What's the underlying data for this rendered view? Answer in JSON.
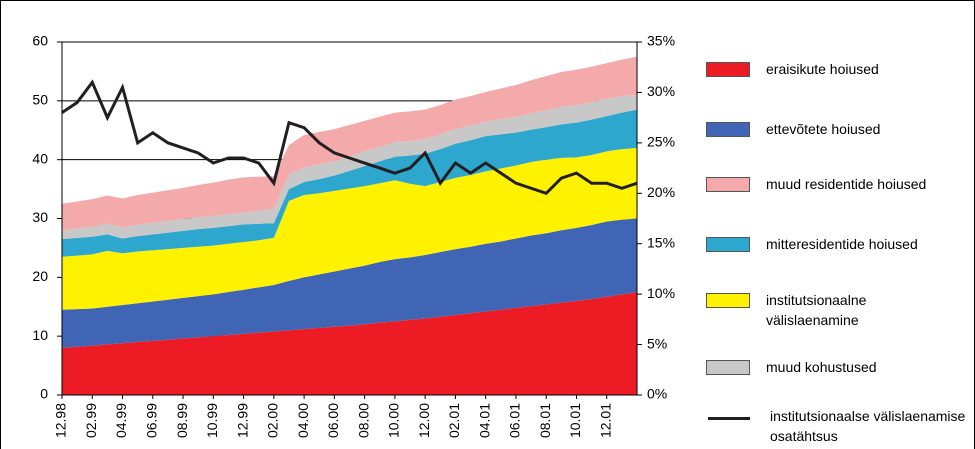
{
  "chart_data": {
    "type": "area",
    "categories": [
      "12.98",
      null,
      "02.99",
      null,
      "04.99",
      null,
      "06.99",
      null,
      "08.99",
      null,
      "10.99",
      null,
      "12.99",
      null,
      "02.00",
      null,
      "04.00",
      null,
      "06.00",
      null,
      "08.00",
      null,
      "10.00",
      null,
      "12.00",
      null,
      "02.01",
      null,
      "04.01",
      null,
      "06.01",
      null,
      "08.01",
      null,
      "10.01",
      null,
      "12.01",
      null,
      null
    ],
    "ylim": [
      0,
      60
    ],
    "yticks": [
      0,
      10,
      20,
      30,
      40,
      50,
      60
    ],
    "y2lim": [
      0,
      35
    ],
    "y2ticks": [
      {
        "value": 0,
        "label": "0%"
      },
      {
        "value": 5,
        "label": "5%"
      },
      {
        "value": 10,
        "label": "10%"
      },
      {
        "value": 15,
        "label": "15%"
      },
      {
        "value": 20,
        "label": "20%"
      },
      {
        "value": 25,
        "label": "25%"
      },
      {
        "value": 30,
        "label": "30%"
      },
      {
        "value": 35,
        "label": "35%"
      }
    ],
    "grid": true,
    "series": [
      {
        "name": "eraisikute hoiused",
        "color": "#ed1c24",
        "values": [
          8.0,
          8.2,
          8.4,
          8.6,
          8.8,
          9.0,
          9.2,
          9.4,
          9.6,
          9.8,
          10.0,
          10.2,
          10.4,
          10.6,
          10.8,
          11.0,
          11.2,
          11.4,
          11.6,
          11.8,
          12.0,
          12.3,
          12.5,
          12.8,
          13.0,
          13.3,
          13.6,
          13.9,
          14.2,
          14.5,
          14.8,
          15.1,
          15.4,
          15.7,
          16.0,
          16.3,
          16.7,
          17.1,
          17.5
        ]
      },
      {
        "name": "ettevõtete hoiused",
        "color": "#4065b4",
        "values": [
          6.5,
          6.4,
          6.3,
          6.4,
          6.5,
          6.6,
          6.7,
          6.8,
          6.9,
          7.0,
          7.1,
          7.3,
          7.5,
          7.7,
          7.9,
          8.4,
          8.8,
          9.1,
          9.4,
          9.7,
          10.0,
          10.3,
          10.6,
          10.6,
          10.8,
          11.0,
          11.2,
          11.3,
          11.5,
          11.6,
          11.8,
          12.0,
          12.1,
          12.3,
          12.4,
          12.6,
          12.8,
          12.7,
          12.5
        ]
      },
      {
        "name": "muud residentide hoiused",
        "color": "#f4a9aa",
        "values": [
          4.5,
          4.6,
          4.7,
          4.8,
          4.9,
          5.0,
          5.1,
          5.2,
          5.3,
          5.5,
          5.7,
          5.9,
          6.0,
          5.8,
          5.5,
          5.0,
          5.5,
          5.5,
          5.4,
          5.3,
          5.2,
          5.1,
          5.0,
          5.0,
          5.0,
          5.0,
          5.0,
          5.0,
          5.0,
          5.2,
          5.4,
          5.6,
          5.8,
          5.9,
          6.0,
          6.0,
          6.0,
          6.2,
          6.5
        ]
      },
      {
        "name": "mitteresidentide hoiused",
        "color": "#2ea7cf",
        "values": [
          3.0,
          3.0,
          3.0,
          2.8,
          2.5,
          2.6,
          2.7,
          2.8,
          2.9,
          3.0,
          3.0,
          3.0,
          3.0,
          2.8,
          2.5,
          2.0,
          2.2,
          2.4,
          2.6,
          3.0,
          3.4,
          3.7,
          4.0,
          4.8,
          5.5,
          5.6,
          5.8,
          5.9,
          6.0,
          5.8,
          5.6,
          5.5,
          5.5,
          5.7,
          5.9,
          6.0,
          6.0,
          6.2,
          6.5
        ]
      },
      {
        "name": "institutsionaalne välislaenamine",
        "color": "#fff200",
        "values": [
          9.0,
          9.1,
          9.2,
          9.5,
          8.8,
          8.8,
          8.7,
          8.6,
          8.5,
          8.4,
          8.3,
          8.2,
          8.1,
          8.0,
          8.0,
          13.6,
          14.0,
          13.8,
          13.7,
          13.6,
          13.5,
          13.4,
          13.4,
          12.5,
          11.7,
          11.9,
          12.1,
          12.2,
          12.3,
          12.4,
          12.4,
          12.5,
          12.5,
          12.3,
          12.0,
          11.9,
          11.9,
          12.0,
          12.0
        ]
      },
      {
        "name": "muud kohustused",
        "color": "#c8c8c8",
        "values": [
          1.5,
          1.6,
          1.7,
          1.8,
          1.9,
          2.0,
          2.0,
          2.0,
          2.0,
          2.0,
          2.0,
          2.0,
          2.0,
          2.2,
          2.5,
          2.5,
          2.5,
          2.5,
          2.5,
          2.5,
          2.5,
          2.5,
          2.5,
          2.5,
          2.5,
          2.5,
          2.5,
          2.5,
          2.5,
          2.6,
          2.7,
          2.8,
          2.9,
          3.0,
          3.0,
          3.0,
          3.0,
          2.8,
          2.5
        ]
      },
      {
        "name": "institutsionaalse välislaenamise osatähtsus",
        "color": "#231f20",
        "type": "line",
        "axis": "y2",
        "values": [
          28.0,
          29.0,
          31.0,
          27.5,
          30.5,
          25.0,
          26.0,
          25.0,
          24.5,
          24.0,
          23.0,
          23.5,
          23.5,
          23.0,
          21.0,
          27.0,
          26.5,
          25.0,
          24.0,
          23.5,
          23.0,
          22.5,
          22.0,
          22.5,
          24.0,
          21.0,
          23.0,
          22.0,
          23.0,
          22.0,
          21.0,
          20.5,
          20.0,
          21.5,
          22.0,
          21.0,
          21.0,
          20.5,
          21.0
        ]
      }
    ],
    "stack_order": [
      0,
      1,
      4,
      3,
      5,
      2
    ],
    "legend_order": [
      0,
      1,
      2,
      3,
      4,
      5,
      6
    ]
  }
}
